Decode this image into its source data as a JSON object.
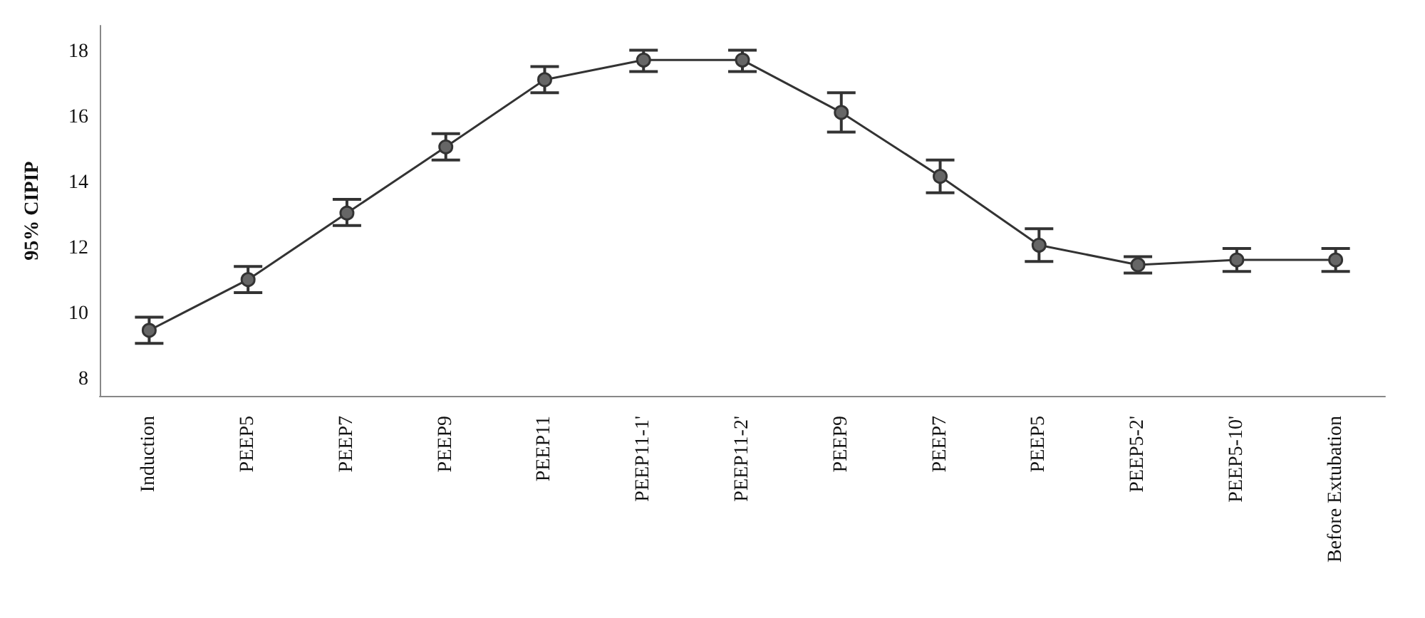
{
  "chart_data": {
    "type": "line",
    "ylabel": "95% CIPIP",
    "categories": [
      "Induction",
      "PEEP5",
      "PEEP7",
      "PEEP9",
      "PEEP11",
      "PEEP11-1'",
      "PEEP11-2'",
      "PEEP9",
      "PEEP7",
      "PEEP5",
      "PEEP5-2'",
      "PEEP5-10'",
      "Before Extubation"
    ],
    "series": [
      {
        "color": "#333333",
        "values": [
          9.5,
          11.05,
          13.08,
          15.1,
          17.15,
          17.75,
          17.75,
          16.15,
          14.2,
          12.1,
          11.5,
          11.65,
          11.65
        ],
        "errors": [
          [
            9.1,
            9.9
          ],
          [
            10.65,
            11.45
          ],
          [
            12.7,
            13.5
          ],
          [
            14.7,
            15.5
          ],
          [
            16.75,
            17.55
          ],
          [
            17.4,
            18.05
          ],
          [
            17.4,
            18.05
          ],
          [
            15.55,
            16.75
          ],
          [
            13.7,
            14.7
          ],
          [
            11.6,
            12.6
          ],
          [
            11.25,
            11.75
          ],
          [
            11.3,
            12.0
          ],
          [
            11.3,
            12.0
          ]
        ]
      }
    ],
    "ylim": [
      7.5,
      18.8
    ],
    "yticks": [
      8,
      10,
      12,
      14,
      16,
      18
    ],
    "grid": false,
    "marker": "circle",
    "line_style": "solid"
  }
}
